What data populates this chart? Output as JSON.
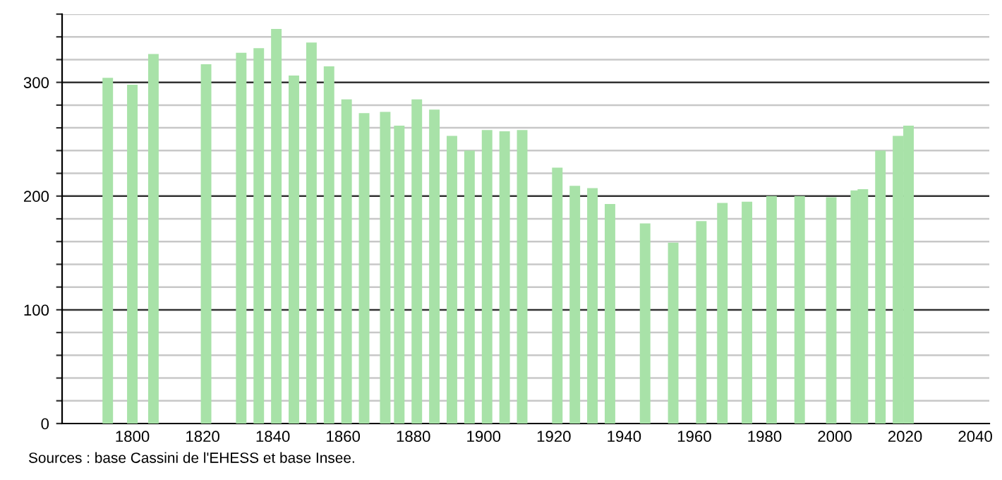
{
  "chart_data": {
    "type": "bar",
    "x": [
      1793,
      1800,
      1806,
      1821,
      1831,
      1836,
      1841,
      1846,
      1851,
      1856,
      1861,
      1866,
      1872,
      1876,
      1881,
      1886,
      1891,
      1896,
      1901,
      1906,
      1911,
      1921,
      1926,
      1931,
      1936,
      1946,
      1954,
      1962,
      1968,
      1975,
      1982,
      1990,
      1999,
      2006,
      2008,
      2013,
      2018,
      2021
    ],
    "values": [
      304,
      298,
      325,
      316,
      326,
      330,
      347,
      306,
      335,
      314,
      285,
      273,
      274,
      262,
      285,
      276,
      253,
      240,
      258,
      257,
      258,
      225,
      209,
      207,
      193,
      176,
      159,
      178,
      194,
      195,
      200,
      200,
      199,
      205,
      206,
      240,
      253,
      262
    ],
    "color": "#a8e2a8",
    "xlim": [
      1780,
      2044
    ],
    "xticks": [
      1800,
      1820,
      1840,
      1860,
      1880,
      1900,
      1920,
      1940,
      1960,
      1980,
      2000,
      2020,
      2040
    ],
    "ylim": [
      0,
      360
    ],
    "yticks": [
      0,
      {
        "value": 20,
        "label": null
      },
      {
        "value": 40,
        "label": null
      },
      {
        "value": 60,
        "label": null
      },
      {
        "value": 80,
        "label": null
      },
      100,
      {
        "value": 120,
        "label": null
      },
      {
        "value": 140,
        "label": null
      },
      {
        "value": 160,
        "label": null
      },
      {
        "value": 180,
        "label": null
      },
      200,
      {
        "value": 220,
        "label": null
      },
      {
        "value": 240,
        "label": null
      },
      {
        "value": 260,
        "label": null
      },
      {
        "value": 280,
        "label": null
      },
      300,
      {
        "value": 320,
        "label": null
      },
      {
        "value": 340,
        "label": null
      },
      {
        "value": 360,
        "label": null
      }
    ],
    "grid": "y",
    "annotations": [
      "Sources : base Cassini de l'EHESS et base Insee."
    ]
  }
}
